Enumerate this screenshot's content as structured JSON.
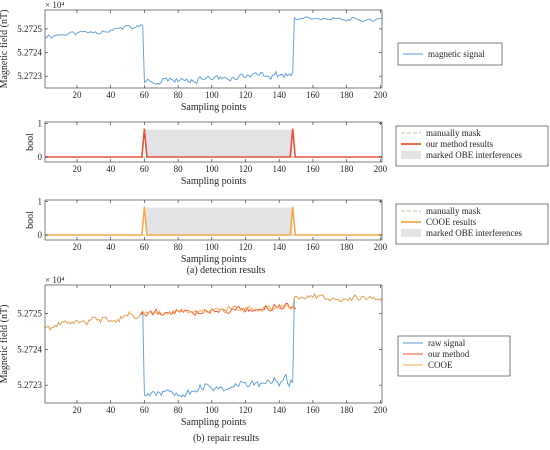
{
  "colors": {
    "raw": "#5b9bd5",
    "ours": "#e8523a",
    "cooe": "#f5a94b",
    "manual": "#c9c0a0",
    "obe_fill": "#e3e3e6",
    "axis": "#262626"
  },
  "captions": {
    "detection": "(a) detection results",
    "repair": "(b) repair results"
  },
  "chart_data": [
    {
      "type": "line",
      "id": "panel1",
      "xlabel": "Sampling points",
      "ylabel": "Magnetic field (nT)",
      "y_exponent": "× 10⁴",
      "xlim": [
        1,
        201
      ],
      "ylim": [
        5.27225,
        5.27258
      ],
      "xticks": [
        20,
        40,
        60,
        80,
        100,
        120,
        140,
        160,
        180,
        200
      ],
      "yticks": [
        5.2723,
        5.2724,
        5.2725
      ],
      "ytick_labels": [
        "5.2723",
        "5.2724",
        "5.2725"
      ],
      "legend": [
        "magnetic signal"
      ],
      "legend_position": "outside-right",
      "series": [
        {
          "name": "magnetic signal",
          "color_key": "raw",
          "segments": [
            {
              "x_start": 1,
              "x_end": 59,
              "base_start": 5.27247,
              "base_end": 5.27251,
              "noise": 1.2e-05,
              "seed": 11
            },
            {
              "x_start": 60,
              "x_end": 148,
              "base_start": 5.27228,
              "base_end": 5.27231,
              "noise": 1.6e-05,
              "seed": 23
            },
            {
              "x_start": 149,
              "x_end": 201,
              "base_start": 5.27255,
              "base_end": 5.27254,
              "noise": 9e-06,
              "seed": 37
            }
          ]
        }
      ]
    },
    {
      "type": "line",
      "id": "panel2",
      "xlabel": "Sampling points",
      "ylabel": "bool",
      "xlim": [
        1,
        201
      ],
      "ylim": [
        -0.15,
        1.05
      ],
      "xticks": [
        20,
        40,
        60,
        80,
        100,
        120,
        140,
        160,
        180,
        200
      ],
      "yticks": [
        0,
        1
      ],
      "ytick_labels": [
        "0",
        "1"
      ],
      "legend": [
        "manually mask",
        "our method results",
        "marked OBE interferences"
      ],
      "legend_position": "outside-right",
      "obe_region": {
        "x_start": 61,
        "x_end": 148,
        "y_top": 0.82
      },
      "series": [
        {
          "name": "manually mask",
          "color_key": "manual",
          "dashed": true
        },
        {
          "name": "our method results",
          "color_key": "ours",
          "spikes": [
            60,
            148
          ],
          "spike_height": 0.85
        }
      ]
    },
    {
      "type": "line",
      "id": "panel3",
      "xlabel": "Sampling points",
      "ylabel": "bool",
      "xlim": [
        1,
        201
      ],
      "ylim": [
        -0.15,
        1.05
      ],
      "xticks": [
        20,
        40,
        60,
        80,
        100,
        120,
        140,
        160,
        180,
        200
      ],
      "yticks": [
        0,
        1
      ],
      "ytick_labels": [
        "0",
        "1"
      ],
      "legend": [
        "manually mask",
        "COOE results",
        "marked OBE interferences"
      ],
      "legend_position": "outside-right",
      "obe_region": {
        "x_start": 61,
        "x_end": 148,
        "y_top": 0.82
      },
      "series": [
        {
          "name": "manually mask",
          "color_key": "manual",
          "dashed": true
        },
        {
          "name": "COOE results",
          "color_key": "cooe",
          "spikes": [
            60,
            148
          ],
          "spike_height": 0.85
        }
      ]
    },
    {
      "type": "line",
      "id": "panel4",
      "xlabel": "Sampling points",
      "ylabel": "Magnetic field (nT)",
      "y_exponent": "× 10⁴",
      "xlim": [
        1,
        201
      ],
      "ylim": [
        5.27225,
        5.27258
      ],
      "xticks": [
        20,
        40,
        60,
        80,
        100,
        120,
        140,
        160,
        180,
        200
      ],
      "yticks": [
        5.2723,
        5.2724,
        5.2725
      ],
      "ytick_labels": [
        "5.2723",
        "5.2724",
        "5.2725"
      ],
      "legend": [
        "raw signal",
        "our method",
        "COOE"
      ],
      "legend_position": "outside-right",
      "series": [
        {
          "name": "raw signal",
          "color_key": "raw",
          "segments": [
            {
              "x_start": 1,
              "x_end": 59,
              "base_start": 5.27246,
              "base_end": 5.2725,
              "noise": 1.2e-05,
              "seed": 41
            },
            {
              "x_start": 60,
              "x_end": 148,
              "base_start": 5.27228,
              "base_end": 5.27231,
              "noise": 1.6e-05,
              "seed": 53
            },
            {
              "x_start": 149,
              "x_end": 201,
              "base_start": 5.27255,
              "base_end": 5.27254,
              "noise": 9e-06,
              "seed": 67
            }
          ]
        },
        {
          "name": "our method",
          "color_key": "ours",
          "segments": [
            {
              "x_start": 58,
              "x_end": 150,
              "base_start": 5.2725,
              "base_end": 5.27252,
              "noise": 1.1e-05,
              "seed": 79
            }
          ]
        },
        {
          "name": "COOE",
          "color_key": "cooe",
          "segments": [
            {
              "x_start": 1,
              "x_end": 59,
              "base_start": 5.27246,
              "base_end": 5.2725,
              "noise": 1.2e-05,
              "seed": 41
            },
            {
              "x_start": 60,
              "x_end": 148,
              "base_start": 5.2725,
              "base_end": 5.27252,
              "noise": 1e-05,
              "seed": 89
            },
            {
              "x_start": 149,
              "x_end": 201,
              "base_start": 5.27255,
              "base_end": 5.27254,
              "noise": 9e-06,
              "seed": 67
            }
          ]
        }
      ]
    }
  ]
}
